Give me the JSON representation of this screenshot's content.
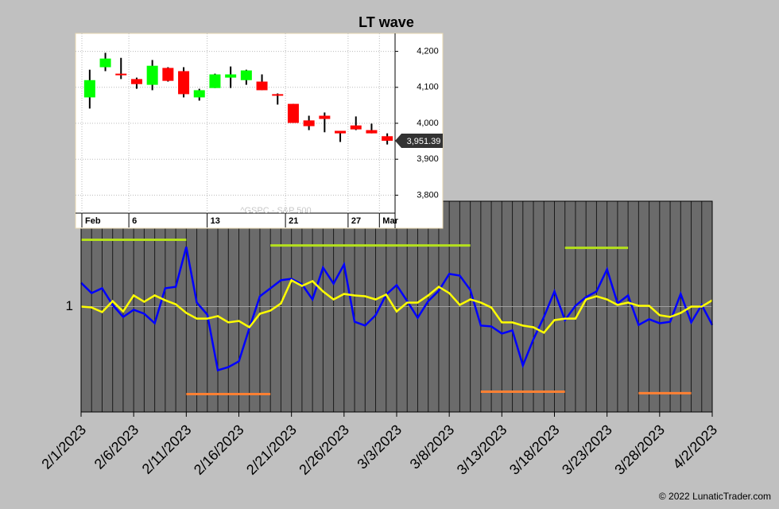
{
  "chart_data": [
    {
      "type": "line",
      "title": "LT wave",
      "x": [
        "2/1/2023",
        "2/2/2023",
        "2/3/2023",
        "2/4/2023",
        "2/5/2023",
        "2/6/2023",
        "2/7/2023",
        "2/8/2023",
        "2/9/2023",
        "2/10/2023",
        "2/11/2023",
        "2/12/2023",
        "2/13/2023",
        "2/14/2023",
        "2/15/2023",
        "2/16/2023",
        "2/17/2023",
        "2/18/2023",
        "2/19/2023",
        "2/20/2023",
        "2/21/2023",
        "2/22/2023",
        "2/23/2023",
        "2/24/2023",
        "2/25/2023",
        "2/26/2023",
        "2/27/2023",
        "2/28/2023",
        "3/1/2023",
        "3/2/2023",
        "3/3/2023",
        "3/4/2023",
        "3/5/2023",
        "3/6/2023",
        "3/7/2023",
        "3/8/2023",
        "3/9/2023",
        "3/10/2023",
        "3/11/2023",
        "3/12/2023",
        "3/13/2023",
        "3/14/2023",
        "3/15/2023",
        "3/16/2023",
        "3/17/2023",
        "3/18/2023",
        "3/19/2023",
        "3/20/2023",
        "3/21/2023",
        "3/22/2023",
        "3/23/2023",
        "3/24/2023",
        "3/25/2023",
        "3/26/2023",
        "3/27/2023",
        "3/28/2023",
        "3/29/2023",
        "3/30/2023",
        "3/31/2023",
        "4/1/2023",
        "4/2/2023"
      ],
      "series": [
        {
          "color": "#0000ff",
          "values": [
            1.113,
            1.064,
            1.087,
            1.008,
            0.951,
            0.985,
            0.966,
            0.921,
            1.087,
            1.094,
            1.283,
            1.019,
            0.962,
            0.698,
            0.713,
            0.74,
            0.898,
            1.049,
            1.087,
            1.125,
            1.132,
            1.106,
            1.034,
            1.185,
            1.109,
            1.2,
            0.928,
            0.91,
            0.959,
            1.057,
            1.102,
            1.026,
            0.947,
            1.026,
            1.075,
            1.155,
            1.147,
            1.079,
            0.91,
            0.906,
            0.872,
            0.887,
            0.721,
            0.845,
            0.951,
            1.072,
            0.936,
            1.004,
            1.045,
            1.072,
            1.177,
            1.015,
            1.053,
            0.913,
            0.94,
            0.921,
            0.928,
            1.06,
            0.925,
            1.008,
            0.913
          ]
        },
        {
          "color": "#ffff00",
          "values": [
            1.0,
            0.996,
            0.974,
            1.026,
            0.977,
            1.053,
            1.023,
            1.053,
            1.03,
            1.011,
            0.97,
            0.943,
            0.943,
            0.955,
            0.925,
            0.932,
            0.902,
            0.966,
            0.981,
            1.015,
            1.125,
            1.098,
            1.121,
            1.072,
            1.034,
            1.06,
            1.053,
            1.049,
            1.034,
            1.057,
            0.977,
            1.019,
            1.019,
            1.053,
            1.094,
            1.064,
            1.008,
            1.034,
            1.019,
            0.996,
            0.925,
            0.925,
            0.91,
            0.902,
            0.876,
            0.936,
            0.943,
            0.943,
            1.034,
            1.049,
            1.034,
            1.008,
            1.019,
            1.004,
            1.004,
            0.959,
            0.951,
            0.97,
            1.0,
            1.0,
            1.03
          ]
        }
      ],
      "segments": [
        {
          "color": "#b4e01c",
          "start": "2/1/2023",
          "end": "2/11/2023",
          "value": 1.317
        },
        {
          "color": "#b4e01c",
          "start": "2/19/2023",
          "end": "3/10/2023",
          "value": 1.29
        },
        {
          "color": "#b4e01c",
          "start": "3/19/2023",
          "end": "3/25/2023",
          "value": 1.279
        },
        {
          "color": "#ff8033",
          "start": "2/11/2023",
          "end": "2/19/2023",
          "value": 0.585
        },
        {
          "color": "#ff8033",
          "start": "3/11/2023",
          "end": "3/19/2023",
          "value": 0.596
        },
        {
          "color": "#ff8033",
          "start": "3/26/2023",
          "end": "3/31/2023",
          "value": 0.589
        }
      ],
      "ylim": [
        0.5,
        1.5
      ],
      "yticks": [
        1
      ],
      "grid": true
    },
    {
      "type": "candlestick",
      "watermark": "^GSPC - S&P 500",
      "categories": [
        "Feb",
        null,
        null,
        "6",
        null,
        null,
        null,
        null,
        "13",
        null,
        null,
        null,
        null,
        "21",
        null,
        null,
        null,
        "27",
        null,
        "Mar"
      ],
      "open": [
        4072,
        4156,
        4138,
        4123,
        4107,
        4154,
        4145,
        4072,
        4098,
        4127,
        4120,
        4116,
        4081,
        4054,
        4008,
        4021,
        3979,
        3994,
        3981,
        3964
      ],
      "high": [
        4149,
        4196,
        4182,
        4127,
        4176,
        4156,
        4156,
        4096,
        4138,
        4158,
        4149,
        4136,
        4083,
        4054,
        4021,
        4030,
        3979,
        4019,
        3999,
        3972
      ],
      "low": [
        4041,
        4145,
        4123,
        4096,
        4092,
        4116,
        4072,
        4063,
        4098,
        4098,
        4107,
        4092,
        4052,
        4001,
        3981,
        3975,
        3948,
        3981,
        3972,
        3941
      ],
      "close": [
        4120,
        4180,
        4136,
        4109,
        4160,
        4118,
        4081,
        4092,
        4136,
        4136,
        4147,
        4092,
        4078,
        4001,
        3992,
        4012,
        3972,
        3983,
        3972,
        3951.39
      ],
      "up_color": "#00ff00",
      "down_color": "#ff0000",
      "last_price": {
        "value": 3951.39,
        "label": "3,951.39"
      },
      "ylim": [
        3750,
        4250
      ],
      "yticks": [
        {
          "value": 3800,
          "label": "3,800"
        },
        {
          "value": 3900,
          "label": "3,900"
        },
        {
          "value": 4000,
          "label": "4,000"
        },
        {
          "value": 4100,
          "label": "4,100"
        },
        {
          "value": 4200,
          "label": "4,200"
        }
      ],
      "grid": true
    }
  ],
  "footer": "© 2022 LunaticTrader.com"
}
